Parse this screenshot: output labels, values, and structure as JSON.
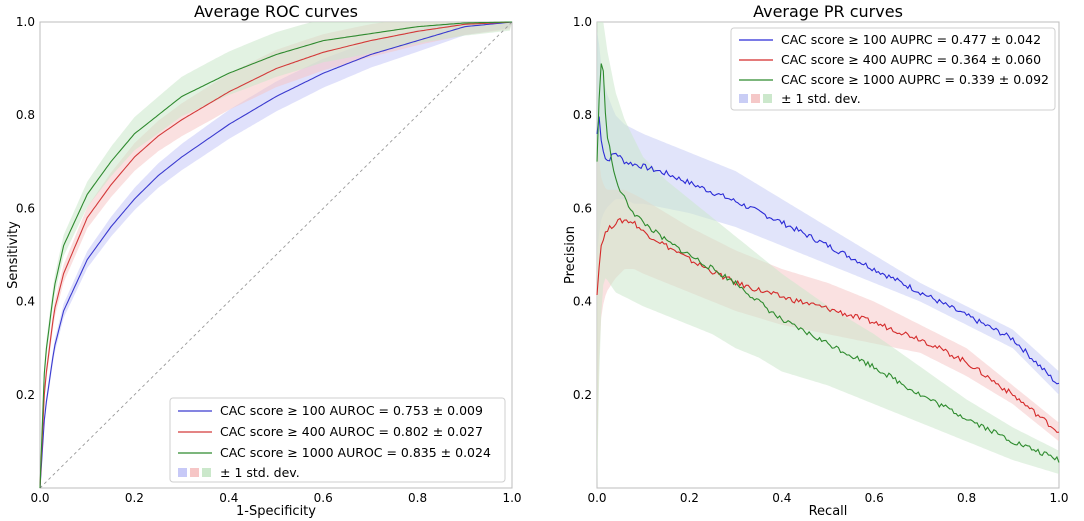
{
  "chart_data": [
    {
      "type": "line",
      "title": "Average ROC curves",
      "xlabel": "1-Specificity",
      "ylabel": "Sensitivity",
      "xlim": [
        0.0,
        1.0
      ],
      "ylim": [
        0.0,
        1.0
      ],
      "xticks": [
        "0.0",
        "0.2",
        "0.4",
        "0.6",
        "0.8",
        "1.0"
      ],
      "yticks": [
        "0.2",
        "0.4",
        "0.6",
        "0.8",
        "1.0"
      ],
      "legend_position": "lower-right",
      "band_label": "± 1 std. dev.",
      "chance_line": {
        "x": [
          0,
          1
        ],
        "y": [
          0,
          1
        ],
        "color": "#999999"
      },
      "series": [
        {
          "name": "CAC score ≥ 100 AUROC = 0.753 ± 0.009",
          "color": "#3a3acf",
          "band_color": "#c7c9f7",
          "x": [
            0,
            0.01,
            0.03,
            0.05,
            0.1,
            0.15,
            0.2,
            0.25,
            0.3,
            0.4,
            0.5,
            0.6,
            0.7,
            0.8,
            0.9,
            1.0
          ],
          "y": [
            0,
            0.16,
            0.3,
            0.38,
            0.49,
            0.56,
            0.62,
            0.67,
            0.71,
            0.78,
            0.84,
            0.89,
            0.93,
            0.96,
            0.99,
            1.0
          ],
          "band": 0.02
        },
        {
          "name": "CAC score ≥ 400 AUROC = 0.802 ± 0.027",
          "color": "#d33a3a",
          "band_color": "#f6c6c6",
          "x": [
            0,
            0.01,
            0.03,
            0.05,
            0.1,
            0.15,
            0.2,
            0.25,
            0.3,
            0.4,
            0.5,
            0.6,
            0.7,
            0.8,
            0.9,
            1.0
          ],
          "y": [
            0,
            0.22,
            0.38,
            0.46,
            0.58,
            0.65,
            0.71,
            0.755,
            0.79,
            0.85,
            0.9,
            0.935,
            0.96,
            0.98,
            0.995,
            1.0
          ],
          "band": 0.025
        },
        {
          "name": "CAC score ≥ 1000 AUROC = 0.835 ± 0.024",
          "color": "#2f8a2f",
          "band_color": "#cbe8cb",
          "x": [
            0,
            0.01,
            0.03,
            0.05,
            0.1,
            0.15,
            0.2,
            0.25,
            0.3,
            0.4,
            0.5,
            0.6,
            0.7,
            0.8,
            0.9,
            1.0
          ],
          "y": [
            0,
            0.27,
            0.43,
            0.52,
            0.63,
            0.7,
            0.76,
            0.8,
            0.84,
            0.89,
            0.93,
            0.96,
            0.975,
            0.99,
            0.998,
            1.0
          ],
          "band": 0.03
        }
      ]
    },
    {
      "type": "line",
      "title": "Average PR curves",
      "xlabel": "Recall",
      "ylabel": "Precision",
      "xlim": [
        0.0,
        1.0
      ],
      "ylim": [
        0.0,
        1.0
      ],
      "xticks": [
        "0.0",
        "0.2",
        "0.4",
        "0.6",
        "0.8",
        "1.0"
      ],
      "yticks": [
        "0.2",
        "0.4",
        "0.6",
        "0.8",
        "1.0"
      ],
      "legend_position": "upper-right",
      "band_label": "± 1 std. dev.",
      "series": [
        {
          "name": "CAC score ≥ 100 AUPRC = 0.477 ± 0.042",
          "color": "#2b2bd6",
          "band_color": "#c9cdf5",
          "x": [
            0,
            0.005,
            0.01,
            0.02,
            0.04,
            0.06,
            0.08,
            0.1,
            0.15,
            0.2,
            0.3,
            0.4,
            0.5,
            0.6,
            0.7,
            0.8,
            0.9,
            1.0
          ],
          "y": [
            0.76,
            0.8,
            0.74,
            0.7,
            0.72,
            0.7,
            0.695,
            0.69,
            0.675,
            0.655,
            0.615,
            0.57,
            0.52,
            0.47,
            0.42,
            0.37,
            0.32,
            0.22
          ],
          "band_hi": [
            0.98,
            0.95,
            0.9,
            0.85,
            0.8,
            0.78,
            0.77,
            0.76,
            0.74,
            0.72,
            0.68,
            0.62,
            0.56,
            0.5,
            0.44,
            0.39,
            0.34,
            0.25
          ],
          "band_lo": [
            0.5,
            0.55,
            0.58,
            0.6,
            0.62,
            0.62,
            0.61,
            0.61,
            0.6,
            0.59,
            0.56,
            0.52,
            0.48,
            0.44,
            0.4,
            0.35,
            0.3,
            0.2
          ]
        },
        {
          "name": "CAC score ≥ 400 AUPRC = 0.364 ± 0.060",
          "color": "#d42a2a",
          "band_color": "#f5c8c8",
          "x": [
            0,
            0.005,
            0.01,
            0.02,
            0.04,
            0.06,
            0.08,
            0.1,
            0.15,
            0.2,
            0.3,
            0.4,
            0.5,
            0.6,
            0.7,
            0.8,
            0.9,
            1.0
          ],
          "y": [
            0.42,
            0.48,
            0.53,
            0.55,
            0.57,
            0.575,
            0.57,
            0.55,
            0.52,
            0.49,
            0.44,
            0.41,
            0.385,
            0.355,
            0.32,
            0.27,
            0.2,
            0.12
          ],
          "band_hi": [
            0.75,
            0.7,
            0.66,
            0.64,
            0.64,
            0.64,
            0.63,
            0.62,
            0.59,
            0.56,
            0.51,
            0.47,
            0.44,
            0.4,
            0.35,
            0.3,
            0.22,
            0.14
          ],
          "band_lo": [
            0.05,
            0.3,
            0.38,
            0.42,
            0.45,
            0.47,
            0.47,
            0.46,
            0.44,
            0.42,
            0.38,
            0.35,
            0.33,
            0.31,
            0.29,
            0.24,
            0.18,
            0.1
          ]
        },
        {
          "name": "CAC score ≥ 1000 AUPRC = 0.339 ± 0.092",
          "color": "#2e8b2e",
          "band_color": "#cce8cc",
          "x": [
            0,
            0.005,
            0.01,
            0.015,
            0.02,
            0.04,
            0.06,
            0.08,
            0.1,
            0.15,
            0.2,
            0.25,
            0.3,
            0.35,
            0.4,
            0.5,
            0.6,
            0.7,
            0.8,
            0.9,
            1.0
          ],
          "y": [
            0.7,
            0.85,
            0.92,
            0.88,
            0.77,
            0.66,
            0.62,
            0.59,
            0.57,
            0.53,
            0.5,
            0.47,
            0.44,
            0.4,
            0.36,
            0.31,
            0.26,
            0.2,
            0.15,
            0.1,
            0.06
          ],
          "band_hi": [
            1.0,
            1.0,
            1.0,
            1.0,
            0.95,
            0.85,
            0.79,
            0.75,
            0.71,
            0.66,
            0.62,
            0.58,
            0.54,
            0.5,
            0.46,
            0.39,
            0.33,
            0.26,
            0.19,
            0.13,
            0.08
          ],
          "band_lo": [
            0.0,
            0.25,
            0.4,
            0.45,
            0.45,
            0.42,
            0.41,
            0.4,
            0.39,
            0.37,
            0.35,
            0.33,
            0.3,
            0.28,
            0.25,
            0.22,
            0.18,
            0.14,
            0.1,
            0.06,
            0.03
          ]
        }
      ]
    }
  ]
}
